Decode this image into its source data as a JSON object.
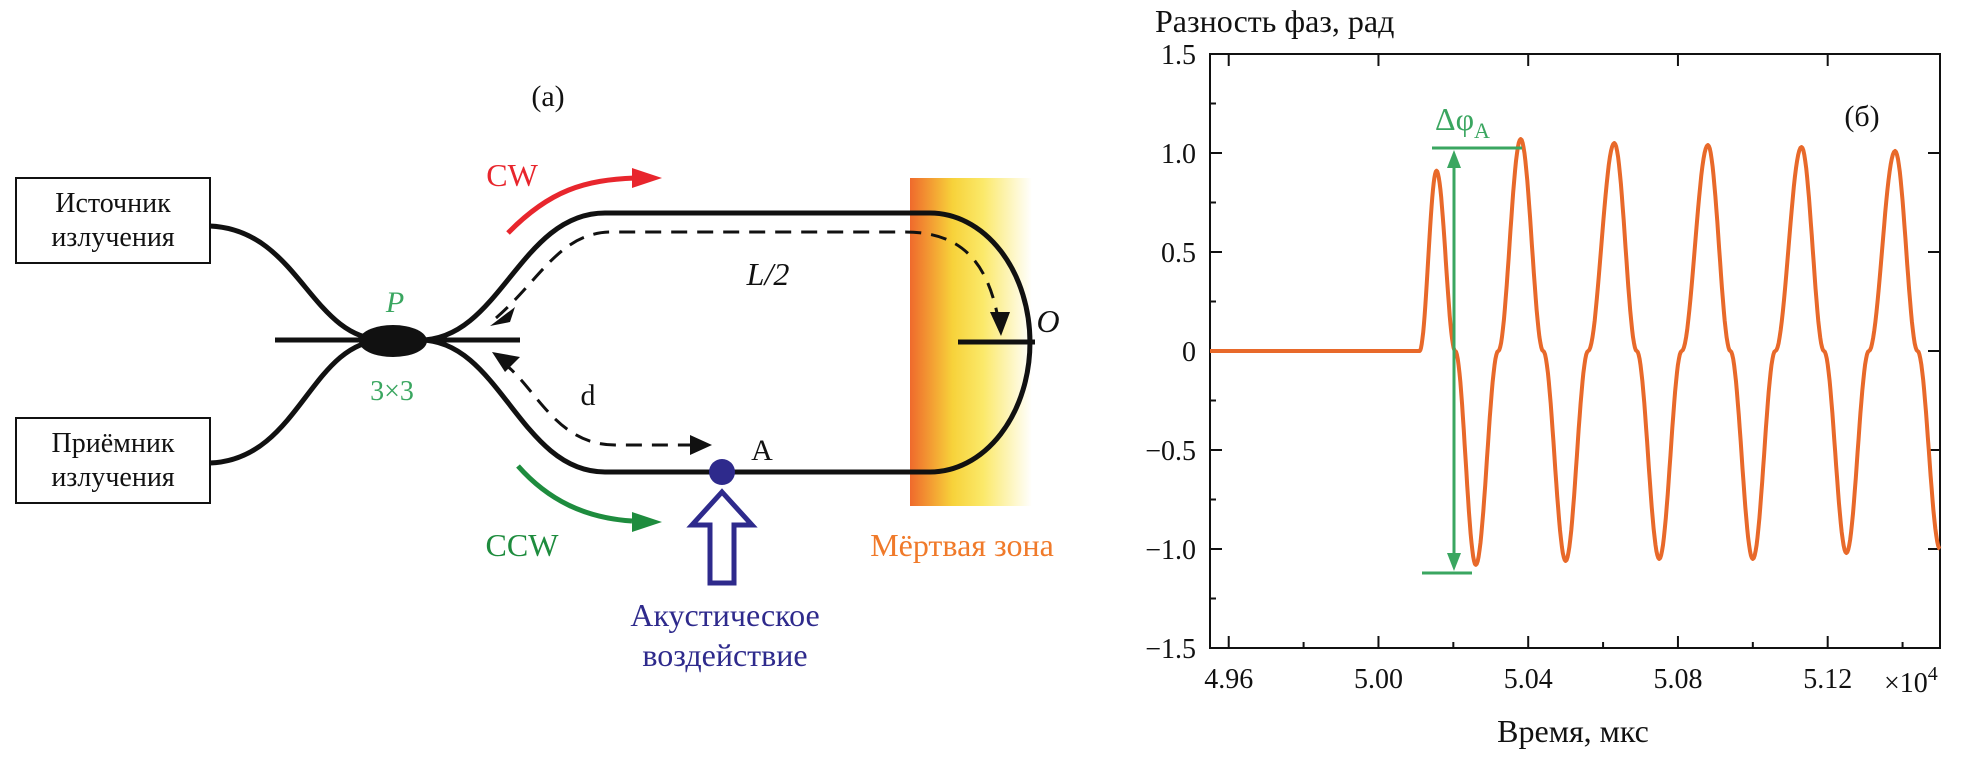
{
  "panel_a": {
    "label": "(a)",
    "source_box": {
      "line1": "Источник",
      "line2": "излучения"
    },
    "receiver_box": {
      "line1": "Приёмник",
      "line2": "излучения"
    },
    "coupler_label": "P",
    "coupler_type": "3×3",
    "cw_label": "CW",
    "ccw_label": "CCW",
    "half_length_label": "L/2",
    "distance_label": "d",
    "point_a_label": "A",
    "point_o_label": "O",
    "dead_zone_label": "Мёртвая зона",
    "acoustic_label_line1": "Акустическое",
    "acoustic_label_line2": "воздействие",
    "colors": {
      "cw": "#e8262d",
      "ccw": "#1e8c3e",
      "coupler_label": "#3aa660",
      "dead_zone_text": "#f07a2a",
      "acoustic": "#2e2a8c",
      "fiber": "#111111"
    }
  },
  "panel_b": {
    "label": "(б)",
    "delta_label": "Δφ",
    "delta_sub": "A",
    "multiplier": "×10",
    "multiplier_exp": "4",
    "colors": {
      "curve": "#e8692a",
      "annotation": "#3aa660"
    }
  },
  "chart_data": {
    "type": "line",
    "title": "",
    "ylabel": "Разность фаз, рад",
    "xlabel": "Время, мкс",
    "xlim": [
      4.955,
      5.15
    ],
    "ylim": [
      -1.5,
      1.5
    ],
    "x_ticks": [
      "4.96",
      "5.00",
      "5.04",
      "5.08",
      "5.12"
    ],
    "x_tick_values": [
      4.96,
      5.0,
      5.04,
      5.08,
      5.12
    ],
    "y_ticks": [
      "1.5",
      "1.0",
      "0.5",
      "0",
      "−0.5",
      "−1.0",
      "−1.5"
    ],
    "y_tick_values": [
      1.5,
      1.0,
      0.5,
      0,
      -0.5,
      -1.0,
      -1.5
    ],
    "grid": false,
    "series": [
      {
        "color": "#e8692a",
        "x": [
          4.955,
          5.011,
          5.0155,
          5.0205,
          5.026,
          5.032,
          5.038,
          5.044,
          5.05,
          5.056,
          5.063,
          5.069,
          5.075,
          5.081,
          5.088,
          5.094,
          5.1,
          5.106,
          5.113,
          5.119,
          5.125,
          5.131,
          5.138,
          5.144,
          5.15
        ],
        "y": [
          0,
          0,
          0.91,
          0,
          -1.08,
          0,
          1.07,
          0,
          -1.06,
          0,
          1.05,
          0,
          -1.05,
          0,
          1.04,
          0,
          -1.05,
          0,
          1.03,
          0,
          -1.02,
          0,
          1.01,
          0,
          -1.0
        ]
      }
    ],
    "annotations": [
      {
        "text": "Δφ_A",
        "from": [
          5.022,
          1.09
        ],
        "to": [
          5.022,
          -1.11
        ]
      }
    ]
  }
}
